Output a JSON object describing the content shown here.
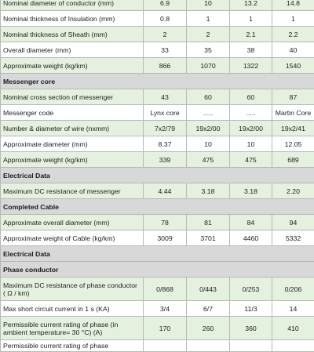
{
  "table": {
    "rows": [
      {
        "kind": "data",
        "label": "Nominal diameter of conductor (mm)",
        "values": [
          "6.9",
          "10",
          "13.2",
          "14.8"
        ]
      },
      {
        "kind": "data",
        "label": "Nominal thickness of Insulation (mm)",
        "values": [
          "0.8",
          "1",
          "1",
          "1"
        ]
      },
      {
        "kind": "data",
        "label": "Nominal thickness of Sheath (mm)",
        "values": [
          "2",
          "2",
          "2.1",
          "2.2"
        ]
      },
      {
        "kind": "data",
        "label": "Overall diameter (mm)",
        "values": [
          "33",
          "35",
          "38",
          "40"
        ]
      },
      {
        "kind": "data",
        "label": "Approximate weight (kg/km)",
        "values": [
          "866",
          "1070",
          "1322",
          "1540"
        ]
      },
      {
        "kind": "section",
        "label": "Messenger core"
      },
      {
        "kind": "data",
        "label": "Nominal cross section of messenger",
        "values": [
          "43",
          "60",
          "60",
          "87"
        ]
      },
      {
        "kind": "data",
        "label": "Messenger code",
        "values": [
          "Lynx core",
          ".....",
          ".....",
          "Martin Core"
        ]
      },
      {
        "kind": "data",
        "label": "Number & diameter of wire (nxmm)",
        "values": [
          "7x2/79",
          "19x2/00",
          "19x2/00",
          "19x2/41"
        ]
      },
      {
        "kind": "data",
        "label": "Approximate diameter (mm)",
        "values": [
          "8.37",
          "10",
          "10",
          "12.05"
        ]
      },
      {
        "kind": "data",
        "label": "Approximate weight (kg/km)",
        "values": [
          "339",
          "475",
          "475",
          "689"
        ]
      },
      {
        "kind": "section",
        "label": "Electrical Data"
      },
      {
        "kind": "data",
        "label": "Maximum DC resistance of messenger",
        "values": [
          "4.44",
          "3.18",
          "3.18",
          "2.20"
        ]
      },
      {
        "kind": "section",
        "label": "Completed Cable"
      },
      {
        "kind": "data",
        "label": "Approximate overall diameter (mm)",
        "values": [
          "78",
          "81",
          "84",
          "94"
        ]
      },
      {
        "kind": "data",
        "label": "Approximate weight of Cable (kg/km)",
        "values": [
          "3009",
          "3701",
          "4460",
          "5332"
        ]
      },
      {
        "kind": "section",
        "label": "Electrical Data"
      },
      {
        "kind": "section",
        "label": "Phase conductor"
      },
      {
        "kind": "data",
        "label": "Maximum DC resistance of phase conductor ( Ω / km)",
        "values": [
          "0/868",
          "0/443",
          "0/253",
          "0/206"
        ]
      },
      {
        "kind": "data",
        "label": "Max short circuit current in 1 s (KA)",
        "values": [
          "3/4",
          "6/7",
          "11/3",
          "14"
        ]
      },
      {
        "kind": "data",
        "label": "Permissible current rating of phase (in ambient temperature= 30 °C) (A)",
        "values": [
          "170",
          "260",
          "360",
          "410"
        ]
      },
      {
        "kind": "data",
        "label": "Permissible current rating of phase",
        "values": [
          "",
          "",
          "",
          ""
        ]
      }
    ]
  }
}
